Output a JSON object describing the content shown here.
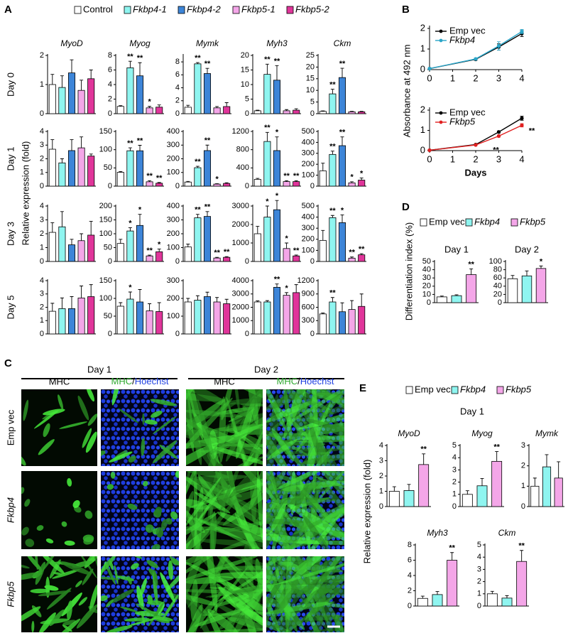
{
  "figure": {
    "panel_labels": [
      "A",
      "B",
      "C",
      "D",
      "E"
    ],
    "legend_A": [
      {
        "name": "Control",
        "color": "#ffffff"
      },
      {
        "name": "Fkbp4-1",
        "color": "#8ff5f0"
      },
      {
        "name": "Fkbp4-2",
        "color": "#3d85d8"
      },
      {
        "name": "Fkbp5-1",
        "color": "#f4a6e8"
      },
      {
        "name": "Fkbp5-2",
        "color": "#e0359a"
      }
    ],
    "rows_A": [
      "Day 0",
      "Day 1",
      "Day 3",
      "Day 5"
    ],
    "ylabel_A": "Relative expression (fold)",
    "ylabel_B": "Absorbance at 492 nm",
    "xlabel_B": "Days",
    "legend_DE": [
      {
        "name": "Emp vec",
        "color": "#ffffff"
      },
      {
        "name": "Fkbp4",
        "color": "#8ff5f0"
      },
      {
        "name": "Fkbp5",
        "color": "#f4a6e8"
      }
    ],
    "ylabel_D": "Differentiation index (%)",
    "title_E": "Day 1",
    "ylabel_E": "Relative expression (fold)",
    "images_C": {
      "days": [
        "Day 1",
        "Day 2"
      ],
      "stain": "MHC",
      "slash": "/",
      "nuclear": "Hoechst",
      "rows": [
        "Emp vec",
        "Fkbp4",
        "Fkbp5"
      ]
    }
  },
  "chart_data": [
    {
      "type": "bar",
      "title": "MyoD",
      "ylim": [
        0,
        2
      ],
      "yticks": [
        0,
        1,
        2
      ],
      "values": [
        1.0,
        0.9,
        1.4,
        0.8,
        1.2
      ],
      "errors": [
        0.35,
        0.4,
        0.45,
        0.35,
        0.3
      ],
      "significance": [
        null,
        null,
        null,
        null,
        null
      ]
    },
    {
      "type": "bar",
      "title": "Myog",
      "ylim": [
        0,
        8
      ],
      "yticks": [
        0,
        2,
        4,
        6,
        8
      ],
      "values": [
        1.0,
        6.3,
        5.2,
        0.8,
        0.9
      ],
      "errors": [
        0.1,
        0.9,
        1.8,
        0.2,
        0.3
      ],
      "significance": [
        null,
        "**",
        "**",
        "*",
        null
      ]
    },
    {
      "type": "bar",
      "title": "Mymk",
      "ylim": [
        0,
        9
      ],
      "yticks": [
        0,
        2,
        4,
        6,
        8
      ],
      "values": [
        1.0,
        7.7,
        6.2,
        0.9,
        1.1
      ],
      "errors": [
        0.3,
        0.2,
        0.8,
        0.2,
        0.6
      ],
      "significance": [
        null,
        "**",
        "**",
        null,
        null
      ]
    },
    {
      "type": "bar",
      "title": "Myh3",
      "ylim": [
        0,
        20
      ],
      "yticks": [
        0,
        5,
        10,
        15,
        20
      ],
      "values": [
        1.0,
        13.5,
        11.5,
        1.0,
        1.2
      ],
      "errors": [
        0.2,
        3.5,
        5.0,
        0.4,
        0.5
      ],
      "significance": [
        null,
        "**",
        "**",
        null,
        null
      ]
    },
    {
      "type": "bar",
      "title": "Ckm",
      "ylim": [
        0,
        25
      ],
      "yticks": [
        0,
        5,
        10,
        15,
        20,
        25
      ],
      "values": [
        1.0,
        8.5,
        15.5,
        0.8,
        0.8
      ],
      "errors": [
        0.2,
        2.0,
        4.0,
        0.2,
        0.2
      ],
      "significance": [
        null,
        "**",
        "**",
        null,
        null
      ]
    },
    {
      "type": "bar",
      "ylim": [
        0,
        4
      ],
      "yticks": [
        0,
        1,
        2,
        3,
        4
      ],
      "values": [
        2.7,
        1.7,
        2.6,
        2.8,
        2.2
      ],
      "errors": [
        0.7,
        0.3,
        0.8,
        0.8,
        0.15
      ],
      "significance": [
        null,
        null,
        null,
        null,
        null
      ]
    },
    {
      "type": "bar",
      "ylim": [
        0,
        150
      ],
      "yticks": [
        0,
        50,
        100,
        150
      ],
      "values": [
        38,
        97,
        97,
        12,
        8
      ],
      "errors": [
        2,
        8,
        15,
        3,
        2
      ],
      "significance": [
        null,
        "**",
        "**",
        "**",
        "**"
      ]
    },
    {
      "type": "bar",
      "ylim": [
        0,
        400
      ],
      "yticks": [
        0,
        100,
        200,
        300,
        400
      ],
      "values": [
        30,
        135,
        260,
        15,
        20
      ],
      "errors": [
        5,
        10,
        40,
        3,
        5
      ],
      "significance": [
        null,
        "**",
        "**",
        "*",
        null
      ]
    },
    {
      "type": "bar",
      "ylim": [
        0,
        1200
      ],
      "yticks": [
        0,
        400,
        800,
        1200
      ],
      "values": [
        150,
        980,
        780,
        100,
        100
      ],
      "errors": [
        20,
        200,
        300,
        20,
        20
      ],
      "significance": [
        null,
        "**",
        "*",
        "**",
        "**"
      ]
    },
    {
      "type": "bar",
      "ylim": [
        0,
        500
      ],
      "yticks": [
        0,
        100,
        200,
        300,
        400,
        500
      ],
      "values": [
        140,
        290,
        370,
        30,
        55
      ],
      "errors": [
        70,
        30,
        80,
        10,
        20
      ],
      "significance": [
        null,
        "**",
        "**",
        "*",
        "*"
      ]
    },
    {
      "type": "bar",
      "ylim": [
        0,
        4
      ],
      "yticks": [
        0,
        1,
        2,
        3,
        4
      ],
      "values": [
        2.1,
        2.5,
        1.2,
        1.5,
        1.9
      ],
      "errors": [
        0.7,
        1.1,
        0.4,
        0.5,
        1.0
      ],
      "significance": [
        null,
        null,
        null,
        null,
        null
      ]
    },
    {
      "type": "bar",
      "ylim": [
        0,
        200
      ],
      "yticks": [
        0,
        50,
        100,
        150,
        200
      ],
      "values": [
        65,
        110,
        130,
        20,
        35
      ],
      "errors": [
        15,
        12,
        40,
        3,
        10
      ],
      "significance": [
        null,
        "*",
        "*",
        "**",
        "*"
      ]
    },
    {
      "type": "bar",
      "ylim": [
        0,
        400
      ],
      "yticks": [
        0,
        100,
        200,
        300,
        400
      ],
      "values": [
        105,
        315,
        325,
        25,
        30
      ],
      "errors": [
        20,
        25,
        35,
        5,
        5
      ],
      "significance": [
        null,
        "**",
        "**",
        "**",
        "**"
      ]
    },
    {
      "type": "bar",
      "ylim": [
        0,
        3000
      ],
      "yticks": [
        0,
        1000,
        2000,
        3000
      ],
      "values": [
        1500,
        2400,
        2800,
        700,
        300
      ],
      "errors": [
        400,
        600,
        500,
        300,
        50
      ],
      "significance": [
        null,
        "*",
        "*",
        "*",
        "**"
      ]
    },
    {
      "type": "bar",
      "ylim": [
        0,
        500
      ],
      "yticks": [
        0,
        100,
        200,
        300,
        400,
        500
      ],
      "values": [
        190,
        395,
        350,
        30,
        60
      ],
      "errors": [
        90,
        20,
        70,
        10,
        10
      ],
      "significance": [
        null,
        "**",
        "*",
        "**",
        "**"
      ]
    },
    {
      "type": "bar",
      "ylim": [
        0,
        4
      ],
      "yticks": [
        0,
        1,
        2,
        3,
        4
      ],
      "values": [
        1.7,
        1.9,
        1.9,
        2.7,
        2.8
      ],
      "errors": [
        0.6,
        0.8,
        0.9,
        0.9,
        0.9
      ],
      "significance": [
        null,
        null,
        null,
        null,
        null
      ]
    },
    {
      "type": "bar",
      "ylim": [
        0,
        150
      ],
      "yticks": [
        0,
        50,
        100,
        150
      ],
      "values": [
        78,
        98,
        90,
        65,
        63
      ],
      "errors": [
        10,
        20,
        35,
        20,
        25
      ],
      "significance": [
        null,
        "*",
        null,
        null,
        null
      ]
    },
    {
      "type": "bar",
      "ylim": [
        0,
        300
      ],
      "yticks": [
        0,
        100,
        200,
        300
      ],
      "values": [
        180,
        190,
        210,
        180,
        170
      ],
      "errors": [
        20,
        25,
        25,
        25,
        25
      ],
      "significance": [
        null,
        null,
        null,
        null,
        null
      ]
    },
    {
      "type": "bar",
      "ylim": [
        0,
        4000
      ],
      "yticks": [
        0,
        1000,
        2000,
        3000,
        4000
      ],
      "values": [
        2400,
        2400,
        3500,
        2900,
        3100
      ],
      "errors": [
        80,
        100,
        250,
        200,
        600
      ],
      "significance": [
        null,
        null,
        "**",
        "*",
        null
      ]
    },
    {
      "type": "bar",
      "ylim": [
        0,
        1200
      ],
      "yticks": [
        0,
        300,
        600,
        900,
        1200
      ],
      "values": [
        450,
        720,
        500,
        550,
        620
      ],
      "errors": [
        20,
        100,
        200,
        200,
        280
      ],
      "significance": [
        null,
        "**",
        null,
        null,
        null
      ]
    },
    {
      "type": "line",
      "x": [
        0,
        2,
        3,
        4
      ],
      "xlim": [
        0,
        4
      ],
      "xticks": [
        0,
        1,
        2,
        3,
        4
      ],
      "ylim": [
        0,
        2
      ],
      "yticks": [
        0,
        1,
        2
      ],
      "series": [
        {
          "name": "Emp vec",
          "color": "#000000",
          "values": [
            0.05,
            0.5,
            1.1,
            1.75
          ],
          "errors": [
            0.02,
            0.04,
            0.15,
            0.15
          ]
        },
        {
          "name": "Fkbp4",
          "color": "#2aa5c8",
          "values": [
            0.05,
            0.52,
            1.15,
            1.85
          ],
          "errors": [
            0.02,
            0.04,
            0.2,
            0.1
          ]
        }
      ]
    },
    {
      "type": "line",
      "x": [
        0,
        2,
        3,
        4
      ],
      "xlim": [
        0,
        4
      ],
      "xticks": [
        0,
        1,
        2,
        3,
        4
      ],
      "ylim": [
        0,
        2
      ],
      "yticks": [
        0,
        1,
        2
      ],
      "series": [
        {
          "name": "Emp vec",
          "color": "#000000",
          "values": [
            0.02,
            0.3,
            0.92,
            1.6
          ],
          "errors": [
            0.02,
            0.03,
            0.05,
            0.1
          ]
        },
        {
          "name": "Fkbp5",
          "color": "#e02020",
          "values": [
            0.02,
            0.28,
            0.72,
            1.25
          ],
          "errors": [
            0.02,
            0.03,
            0.05,
            0.08
          ]
        }
      ],
      "annotations": [
        "**",
        "**"
      ]
    },
    {
      "type": "bar",
      "title": "Day 1",
      "ylim": [
        0,
        50
      ],
      "yticks": [
        0,
        10,
        20,
        30,
        40,
        50
      ],
      "values": [
        7,
        8.5,
        34
      ],
      "errors": [
        1,
        1,
        7
      ],
      "significance": [
        null,
        null,
        "**"
      ]
    },
    {
      "type": "bar",
      "title": "Day 2",
      "ylim": [
        0,
        100
      ],
      "yticks": [
        0,
        20,
        40,
        60,
        80,
        100
      ],
      "values": [
        58,
        65,
        83
      ],
      "errors": [
        8,
        12,
        6
      ],
      "significance": [
        null,
        null,
        "*"
      ]
    },
    {
      "type": "bar",
      "title": "MyoD",
      "ylim": [
        0,
        4
      ],
      "yticks": [
        0,
        1,
        2,
        3,
        4
      ],
      "values": [
        1.0,
        1.05,
        2.75
      ],
      "errors": [
        0.3,
        0.4,
        0.7
      ],
      "significance": [
        null,
        null,
        "**"
      ]
    },
    {
      "type": "bar",
      "title": "Myog",
      "ylim": [
        0,
        5
      ],
      "yticks": [
        0,
        1,
        2,
        3,
        4,
        5
      ],
      "values": [
        1.0,
        1.7,
        3.7
      ],
      "errors": [
        0.3,
        0.6,
        0.8
      ],
      "significance": [
        null,
        null,
        "**"
      ]
    },
    {
      "type": "bar",
      "title": "Mymk",
      "ylim": [
        0,
        3
      ],
      "yticks": [
        0,
        1,
        2,
        3
      ],
      "values": [
        1.0,
        1.95,
        1.4
      ],
      "errors": [
        0.4,
        0.6,
        0.8
      ],
      "significance": [
        null,
        null,
        null
      ]
    },
    {
      "type": "bar",
      "title": "Myh3",
      "ylim": [
        0,
        8
      ],
      "yticks": [
        0,
        2,
        4,
        6,
        8
      ],
      "values": [
        1.0,
        1.5,
        6.0
      ],
      "errors": [
        0.3,
        0.4,
        1.0
      ],
      "significance": [
        null,
        null,
        "**"
      ]
    },
    {
      "type": "bar",
      "title": "Ckm",
      "ylim": [
        0,
        5
      ],
      "yticks": [
        0,
        1,
        2,
        3,
        4,
        5
      ],
      "values": [
        1.0,
        0.65,
        3.65
      ],
      "errors": [
        0.2,
        0.2,
        0.9
      ],
      "significance": [
        null,
        null,
        "**"
      ]
    }
  ]
}
